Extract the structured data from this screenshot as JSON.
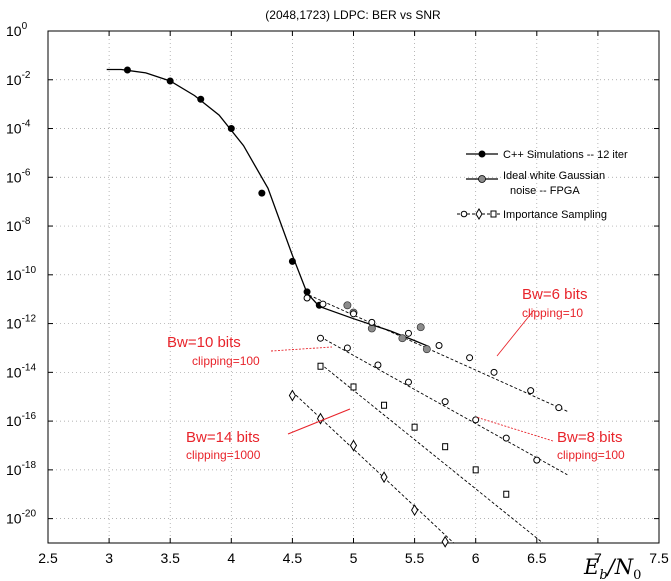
{
  "chart_data": {
    "type": "scatter",
    "title": "(2048,1723) LDPC: BER vs SNR",
    "xlabel": "E_b/N_0",
    "ylabel": "",
    "xlim": [
      2.5,
      7.5
    ],
    "ylim_exponent": [
      -21,
      0
    ],
    "y_scale": "log",
    "grid": true,
    "x_ticks": [
      "2.5",
      "3",
      "3.5",
      "4",
      "4.5",
      "5",
      "5.5",
      "6",
      "6.5",
      "7",
      "7.5"
    ],
    "y_ticks": [
      {
        "base": "10",
        "exp": "0"
      },
      {
        "base": "10",
        "exp": "-2"
      },
      {
        "base": "10",
        "exp": "-4"
      },
      {
        "base": "10",
        "exp": "-6"
      },
      {
        "base": "10",
        "exp": "-8"
      },
      {
        "base": "10",
        "exp": "-10"
      },
      {
        "base": "10",
        "exp": "-12"
      },
      {
        "base": "10",
        "exp": "-14"
      },
      {
        "base": "10",
        "exp": "-16"
      },
      {
        "base": "10",
        "exp": "-18"
      },
      {
        "base": "10",
        "exp": "-20"
      }
    ],
    "legend": {
      "placement": "right",
      "entries": [
        {
          "label": "C++ Simulations -- 12 iter",
          "marker": "filled-circle"
        },
        {
          "label_lines": [
            "Ideal white Gaussian",
            "noise -- FPGA"
          ],
          "marker": "gray-circle"
        },
        {
          "label": "Importance Sampling",
          "marker": "open-circle-diamond-square"
        }
      ]
    },
    "series": [
      {
        "name": "C++ Simulations -- 12 iter",
        "marker": "filled-circle",
        "color": "#000000",
        "points": [
          {
            "x": 3.15,
            "log10_ber": -1.6
          },
          {
            "x": 3.5,
            "log10_ber": -2.05
          },
          {
            "x": 3.75,
            "log10_ber": -2.8
          },
          {
            "x": 4.0,
            "log10_ber": -4.0
          },
          {
            "x": 4.25,
            "log10_ber": -6.65
          },
          {
            "x": 4.5,
            "log10_ber": -9.45
          },
          {
            "x": 4.62,
            "log10_ber": -10.7
          },
          {
            "x": 4.72,
            "log10_ber": -11.25
          }
        ],
        "curve": [
          [
            2.98,
            -1.58
          ],
          [
            3.1,
            -1.58
          ],
          [
            3.3,
            -1.72
          ],
          [
            3.5,
            -2.05
          ],
          [
            3.7,
            -2.65
          ],
          [
            3.9,
            -3.45
          ],
          [
            4.1,
            -4.7
          ],
          [
            4.3,
            -6.45
          ],
          [
            4.5,
            -9.2
          ],
          [
            4.62,
            -10.75
          ],
          [
            4.72,
            -11.3
          ],
          [
            5.0,
            -11.8
          ],
          [
            5.3,
            -12.3
          ],
          [
            5.5,
            -12.7
          ],
          [
            5.62,
            -12.95
          ]
        ]
      },
      {
        "name": "Ideal white Gaussian noise -- FPGA",
        "marker": "gray-circle",
        "color": "#808080",
        "points": [
          {
            "x": 4.95,
            "log10_ber": -11.25
          },
          {
            "x": 5.0,
            "log10_ber": -11.55
          },
          {
            "x": 5.15,
            "log10_ber": -12.2
          },
          {
            "x": 5.4,
            "log10_ber": -12.6
          },
          {
            "x": 5.55,
            "log10_ber": -12.15
          },
          {
            "x": 5.6,
            "log10_ber": -13.05
          }
        ]
      },
      {
        "name": "Importance Sampling",
        "marker": "open-circle",
        "points": [
          {
            "x": 4.62,
            "log10_ber": -10.95
          },
          {
            "x": 4.75,
            "log10_ber": -11.2
          },
          {
            "x": 5.0,
            "log10_ber": -11.6
          },
          {
            "x": 5.15,
            "log10_ber": -11.95
          },
          {
            "x": 5.45,
            "log10_ber": -12.4
          },
          {
            "x": 5.7,
            "log10_ber": -12.9
          },
          {
            "x": 5.95,
            "log10_ber": -13.4
          },
          {
            "x": 6.15,
            "log10_ber": -14.0
          },
          {
            "x": 6.45,
            "log10_ber": -14.75
          },
          {
            "x": 6.68,
            "log10_ber": -15.45
          }
        ]
      },
      {
        "name": "Importance Sampling",
        "marker": "open-circle",
        "points": [
          {
            "x": 4.73,
            "log10_ber": -12.6
          },
          {
            "x": 4.95,
            "log10_ber": -13.0
          },
          {
            "x": 5.2,
            "log10_ber": -13.7
          },
          {
            "x": 5.45,
            "log10_ber": -14.4
          },
          {
            "x": 5.75,
            "log10_ber": -15.2
          },
          {
            "x": 6.0,
            "log10_ber": -15.95
          },
          {
            "x": 6.25,
            "log10_ber": -16.7
          },
          {
            "x": 6.5,
            "log10_ber": -17.6
          }
        ]
      },
      {
        "name": "Importance Sampling",
        "marker": "open-square",
        "points": [
          {
            "x": 4.73,
            "log10_ber": -13.75
          },
          {
            "x": 5.0,
            "log10_ber": -14.6
          },
          {
            "x": 5.25,
            "log10_ber": -15.35
          },
          {
            "x": 5.5,
            "log10_ber": -16.25
          },
          {
            "x": 5.75,
            "log10_ber": -17.05
          },
          {
            "x": 6.0,
            "log10_ber": -18.0
          },
          {
            "x": 6.25,
            "log10_ber": -19.0
          }
        ]
      },
      {
        "name": "Importance Sampling",
        "marker": "open-diamond",
        "points": [
          {
            "x": 4.5,
            "log10_ber": -14.95
          },
          {
            "x": 4.73,
            "log10_ber": -15.9
          },
          {
            "x": 5.0,
            "log10_ber": -17.0
          },
          {
            "x": 5.25,
            "log10_ber": -18.3
          },
          {
            "x": 5.5,
            "log10_ber": -19.65
          },
          {
            "x": 5.75,
            "log10_ber": -20.95
          }
        ]
      }
    ],
    "dashed_fits": [
      [
        [
          4.6,
          -10.75
        ],
        [
          6.75,
          -15.6
        ]
      ],
      [
        [
          4.73,
          -12.55
        ],
        [
          6.75,
          -18.2
        ]
      ],
      [
        [
          4.73,
          -13.65
        ],
        [
          6.55,
          -21
        ]
      ],
      [
        [
          4.5,
          -14.8
        ],
        [
          5.82,
          -21
        ]
      ]
    ],
    "annotations": [
      {
        "title": "Bw=6 bits",
        "subtitle": "clipping=10",
        "color": "#e8242b"
      },
      {
        "title": "Bw=10 bits",
        "subtitle": "clipping=100",
        "color": "#e8242b"
      },
      {
        "title": "Bw=8 bits",
        "subtitle": "clipping=100",
        "color": "#e8242b"
      },
      {
        "title": "Bw=14 bits",
        "subtitle": "clipping=1000",
        "color": "#e8242b"
      }
    ]
  }
}
